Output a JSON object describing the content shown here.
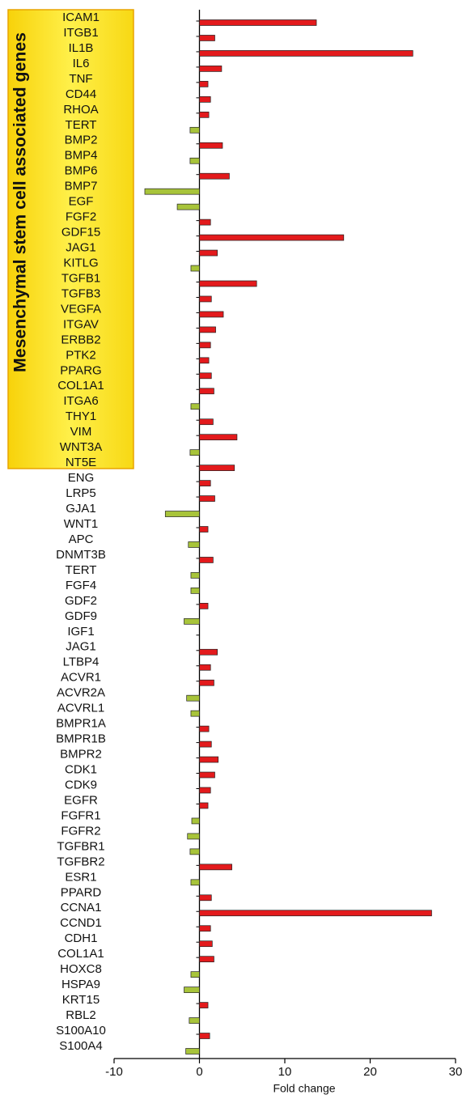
{
  "chart_data": {
    "type": "bar",
    "orientation": "horizontal",
    "annotation": "Mesenchymal stem cell associated genes",
    "categories": [
      "ICAM1",
      "ITGB1",
      "IL1B",
      "IL6",
      "TNF",
      "CD44",
      "RHOA",
      "TERT",
      "BMP2",
      "BMP4",
      "BMP6",
      "BMP7",
      "EGF",
      "FGF2",
      "GDF15",
      "JAG1",
      "KITLG",
      "TGFB1",
      "TGFB3",
      "VEGFA",
      "ITGAV",
      "ERBB2",
      "PTK2",
      "PPARG",
      "COL1A1",
      "ITGA6",
      "THY1",
      "VIM",
      "WNT3A",
      "NT5E",
      "ENG",
      "LRP5",
      "GJA1",
      "WNT1",
      "APC",
      "DNMT3B",
      "TERT",
      "FGF4",
      "GDF2",
      "GDF9",
      "IGF1",
      "JAG1",
      "LTBP4",
      "ACVR1",
      "ACVR2A",
      "ACVRL1",
      "BMPR1A",
      "BMPR1B",
      "BMPR2",
      "CDK1",
      "CDK9",
      "EGFR",
      "FGFR1",
      "FGFR2",
      "TGFBR1",
      "TGFBR2",
      "ESR1",
      "PPARD",
      "CCNA1",
      "CCND1",
      "CDH1",
      "COL1A1",
      "HOXC8",
      "HSPA9",
      "KRT15",
      "RBL2",
      "S100A10",
      "S100A4"
    ],
    "values": [
      13.7,
      1.8,
      25,
      2.6,
      1.0,
      1.3,
      1.1,
      -1.1,
      2.7,
      -1.1,
      3.5,
      -6.4,
      -2.6,
      1.3,
      16.9,
      2.1,
      -1.0,
      6.7,
      1.4,
      2.8,
      1.9,
      1.3,
      1.1,
      1.4,
      1.7,
      -1.0,
      1.6,
      4.4,
      -1.1,
      4.1,
      1.3,
      1.8,
      -4.0,
      1.0,
      -1.3,
      1.6,
      -1.0,
      -1.0,
      1.0,
      -1.8,
      0,
      2.1,
      1.3,
      1.7,
      -1.5,
      -1.0,
      1.1,
      1.4,
      2.2,
      1.8,
      1.3,
      1.0,
      -0.9,
      -1.4,
      -1.1,
      3.8,
      -1.0,
      1.4,
      27.2,
      1.3,
      1.5,
      1.7,
      -1.0,
      -1.8,
      1.0,
      -1.2,
      1.2,
      -1.6
    ],
    "positive_color": "#e31a1c",
    "negative_color": "#a8c43a",
    "xlim": [
      -10,
      30
    ],
    "xticks": [
      -10,
      0,
      10,
      20,
      30
    ],
    "xlabel": "Fold change"
  }
}
